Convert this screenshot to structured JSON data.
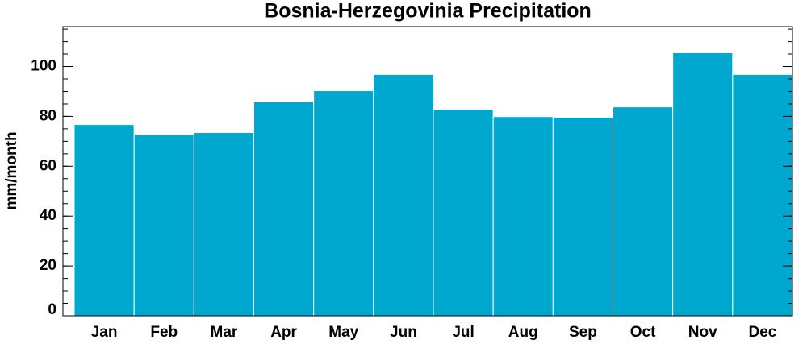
{
  "chart_data": {
    "type": "bar",
    "title": "Bosnia-Herzegovinia Precipitation",
    "y_label": "mm/month",
    "categories": [
      "Jan",
      "Feb",
      "Mar",
      "Apr",
      "May",
      "Jun",
      "Jul",
      "Aug",
      "Sep",
      "Oct",
      "Nov",
      "Dec"
    ],
    "values": [
      76.7,
      72.8,
      73.5,
      85.8,
      90.3,
      96.8,
      82.8,
      79.9,
      79.6,
      83.8,
      105.5,
      96.8
    ],
    "color": "#00a8d0",
    "ylim": [
      0,
      116
    ],
    "yticks": [
      0,
      20,
      40,
      60,
      80,
      100
    ],
    "minor_tick_step": 5
  }
}
